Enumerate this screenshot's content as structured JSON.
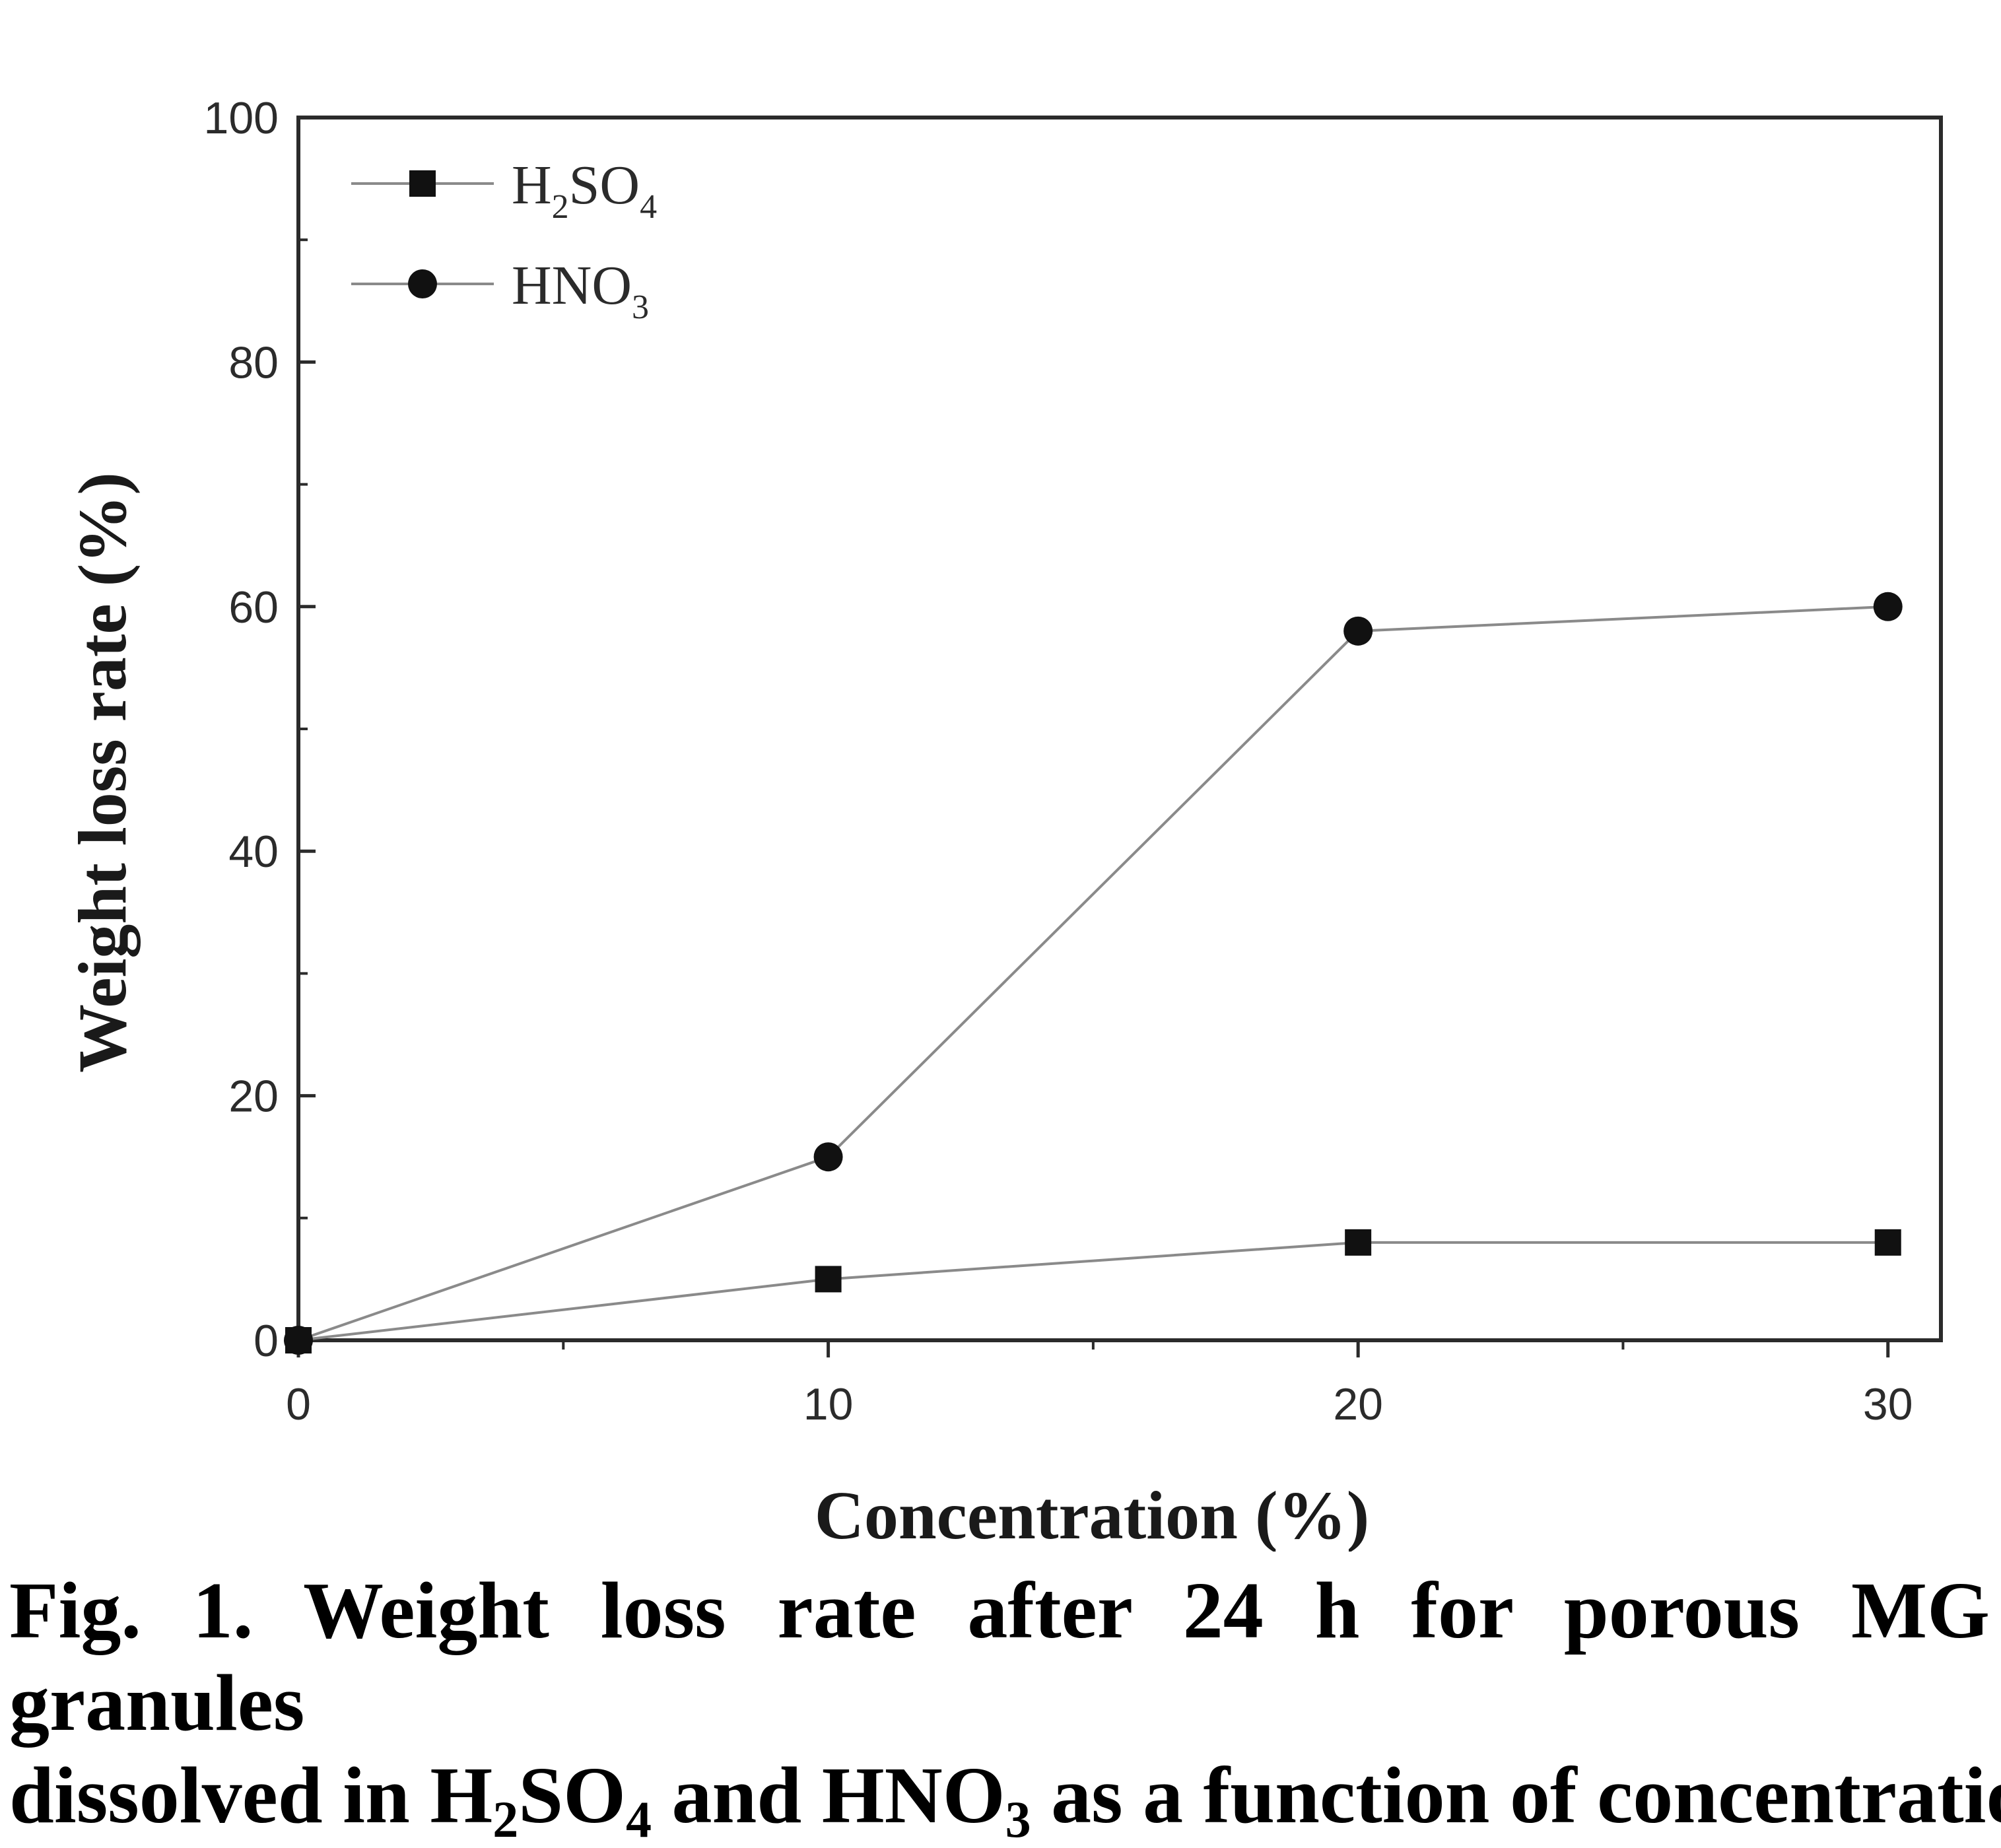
{
  "chart_data": {
    "type": "line",
    "title": "",
    "xlabel": "Concentration (%)",
    "ylabel": "Weight loss rate (%)",
    "xlim": [
      0,
      31
    ],
    "ylim": [
      0,
      100
    ],
    "x_ticks": [
      "0",
      "10",
      "20",
      "30"
    ],
    "y_ticks": [
      "0",
      "20",
      "40",
      "60",
      "80",
      "100"
    ],
    "x": [
      0,
      10,
      20,
      30
    ],
    "grid": false,
    "legend_position": "top-left",
    "series": [
      {
        "name": "H2SO4",
        "legend_base": "H",
        "legend_sub1": "2",
        "legend_mid": "SO",
        "legend_sub2": "4",
        "marker": "square",
        "values": [
          0,
          5,
          8,
          8
        ]
      },
      {
        "name": "HNO3",
        "legend_base": "HNO",
        "legend_sub1": "3",
        "marker": "circle",
        "values": [
          0,
          15,
          58,
          60
        ]
      }
    ],
    "colors": {
      "line": "#8a8a8a",
      "marker": "#111111",
      "axis": "#2b2b2b"
    }
  },
  "caption": {
    "line1": "Fig. 1. Weight loss rate after 24 h for porous MG granules",
    "line2_a": "dissolved in H",
    "line2_sub1": "2",
    "line2_b": "SO",
    "line2_sub2": "4",
    "line2_c": " and HNO",
    "line2_sub3": "3",
    "line2_d": " as a function of concentration."
  }
}
